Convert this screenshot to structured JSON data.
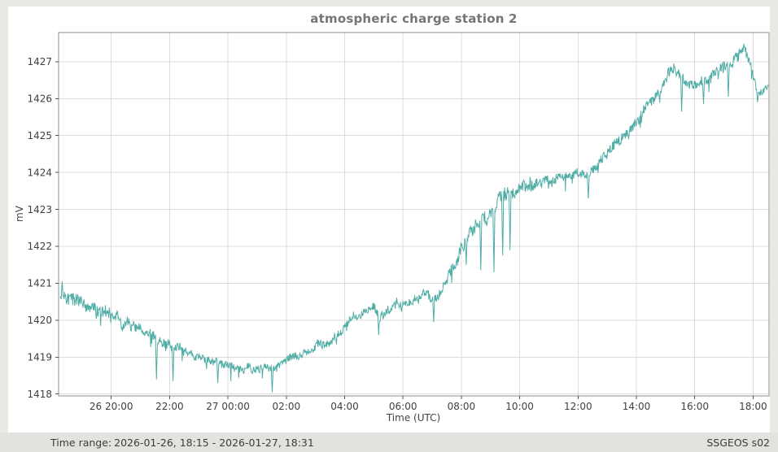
{
  "header": {
    "title": "atmospheric charge station 2"
  },
  "statusbar": {
    "time_range_label": "Time range:",
    "time_range_value": "2026-01-26, 18:15 - 2026-01-27, 18:31",
    "source_label": "SSGEOS s02"
  },
  "colors": {
    "trace": "#4fada5",
    "grid": "#dcdcdc",
    "frame": "#8f8f8f",
    "tick": "#555555",
    "tick_label": "#3f3f3f",
    "axis_title": "#444444",
    "title": "#757575",
    "figure_bg": "#ffffff",
    "page_bg": "#e9e9e6",
    "statusbar_bg": "#e2e2df",
    "statusbar_text": "#3c3c3c"
  },
  "chart_data": {
    "type": "line",
    "title": "atmospheric charge station 2",
    "xlabel": "Time (UTC)",
    "ylabel": "mV",
    "x_unit": "hours since 2026-01-26 00:00 UTC",
    "xlim": [
      18.195,
      42.546
    ],
    "ylim": [
      1417.95,
      1427.79
    ],
    "grid": true,
    "legend": "none",
    "x_ticks": [
      {
        "t": 20,
        "label": "26 20:00"
      },
      {
        "t": 22,
        "label": "22:00"
      },
      {
        "t": 24,
        "label": "27 00:00"
      },
      {
        "t": 26,
        "label": "02:00"
      },
      {
        "t": 28,
        "label": "04:00"
      },
      {
        "t": 30,
        "label": "06:00"
      },
      {
        "t": 32,
        "label": "08:00"
      },
      {
        "t": 34,
        "label": "10:00"
      },
      {
        "t": 36,
        "label": "12:00"
      },
      {
        "t": 38,
        "label": "14:00"
      },
      {
        "t": 40,
        "label": "16:00"
      },
      {
        "t": 42,
        "label": "18:00"
      }
    ],
    "y_ticks": [
      1418,
      1419,
      1420,
      1421,
      1422,
      1423,
      1424,
      1425,
      1426,
      1427
    ],
    "t_start": 18.25,
    "t_end": 42.517,
    "dt": 0.0166667,
    "series": [
      {
        "name": "atmospheric charge",
        "color": "#4fada5",
        "anchors": [
          [
            18.25,
            1420.7
          ],
          [
            18.6,
            1420.55
          ],
          [
            19.0,
            1420.45
          ],
          [
            19.5,
            1420.3
          ],
          [
            20.0,
            1420.15
          ],
          [
            20.5,
            1419.9
          ],
          [
            21.0,
            1419.7
          ],
          [
            21.5,
            1419.55
          ],
          [
            22.0,
            1419.35
          ],
          [
            22.5,
            1419.15
          ],
          [
            23.0,
            1419.0
          ],
          [
            23.5,
            1418.85
          ],
          [
            24.0,
            1418.8
          ],
          [
            24.5,
            1418.7
          ],
          [
            25.0,
            1418.72
          ],
          [
            25.5,
            1418.75
          ],
          [
            26.0,
            1418.9
          ],
          [
            26.5,
            1419.05
          ],
          [
            27.0,
            1419.2
          ],
          [
            27.5,
            1419.45
          ],
          [
            28.0,
            1419.85
          ],
          [
            28.3,
            1420.0
          ],
          [
            28.7,
            1420.15
          ],
          [
            29.0,
            1420.3
          ],
          [
            29.2,
            1420.1
          ],
          [
            29.5,
            1420.3
          ],
          [
            29.8,
            1420.5
          ],
          [
            30.1,
            1420.45
          ],
          [
            30.5,
            1420.6
          ],
          [
            30.8,
            1420.65
          ],
          [
            31.0,
            1420.5
          ],
          [
            31.2,
            1420.6
          ],
          [
            31.5,
            1421.0
          ],
          [
            31.8,
            1421.6
          ],
          [
            32.0,
            1422.0
          ],
          [
            32.3,
            1422.45
          ],
          [
            32.6,
            1422.6
          ],
          [
            33.0,
            1422.9
          ],
          [
            33.3,
            1423.25
          ],
          [
            33.6,
            1423.4
          ],
          [
            34.0,
            1423.55
          ],
          [
            34.5,
            1423.65
          ],
          [
            35.0,
            1423.8
          ],
          [
            35.5,
            1423.9
          ],
          [
            36.0,
            1424.0
          ],
          [
            36.3,
            1423.85
          ],
          [
            36.6,
            1424.2
          ],
          [
            37.0,
            1424.55
          ],
          [
            37.5,
            1425.0
          ],
          [
            38.0,
            1425.3
          ],
          [
            38.5,
            1425.9
          ],
          [
            39.0,
            1426.4
          ],
          [
            39.3,
            1426.95
          ],
          [
            39.5,
            1426.7
          ],
          [
            39.7,
            1426.35
          ],
          [
            40.0,
            1426.4
          ],
          [
            40.5,
            1426.55
          ],
          [
            41.0,
            1426.8
          ],
          [
            41.4,
            1427.1
          ],
          [
            41.7,
            1427.3
          ],
          [
            41.9,
            1426.9
          ],
          [
            42.1,
            1426.35
          ],
          [
            42.3,
            1426.25
          ],
          [
            42.52,
            1426.3
          ]
        ],
        "spikes": [
          [
            18.32,
            1421.05
          ],
          [
            21.55,
            1418.4
          ],
          [
            22.12,
            1418.35
          ],
          [
            23.65,
            1418.3
          ],
          [
            25.52,
            1418.05
          ],
          [
            29.17,
            1419.6
          ],
          [
            31.05,
            1419.95
          ],
          [
            32.17,
            1421.5
          ],
          [
            32.67,
            1421.35
          ],
          [
            33.12,
            1421.3
          ],
          [
            33.42,
            1421.75
          ],
          [
            33.67,
            1421.9
          ],
          [
            36.35,
            1423.3
          ],
          [
            39.55,
            1425.65
          ],
          [
            40.3,
            1425.85
          ],
          [
            41.15,
            1426.05
          ],
          [
            42.15,
            1425.9
          ]
        ]
      }
    ],
    "noise": {
      "seed": 421337,
      "amp": 0.12,
      "walk": 0.085,
      "spike_prob": 0.012,
      "zones": [
        [
          18.2,
          20.6,
          1.3
        ],
        [
          20.6,
          22.6,
          1.0
        ],
        [
          22.6,
          27.0,
          0.8
        ],
        [
          27.0,
          31.5,
          0.95
        ],
        [
          31.5,
          34.6,
          1.45
        ],
        [
          34.6,
          36.8,
          0.9
        ],
        [
          36.8,
          39.3,
          1.15
        ],
        [
          39.3,
          40.8,
          1.0
        ],
        [
          40.8,
          42.0,
          1.2
        ],
        [
          42.0,
          42.6,
          0.9
        ]
      ]
    }
  }
}
